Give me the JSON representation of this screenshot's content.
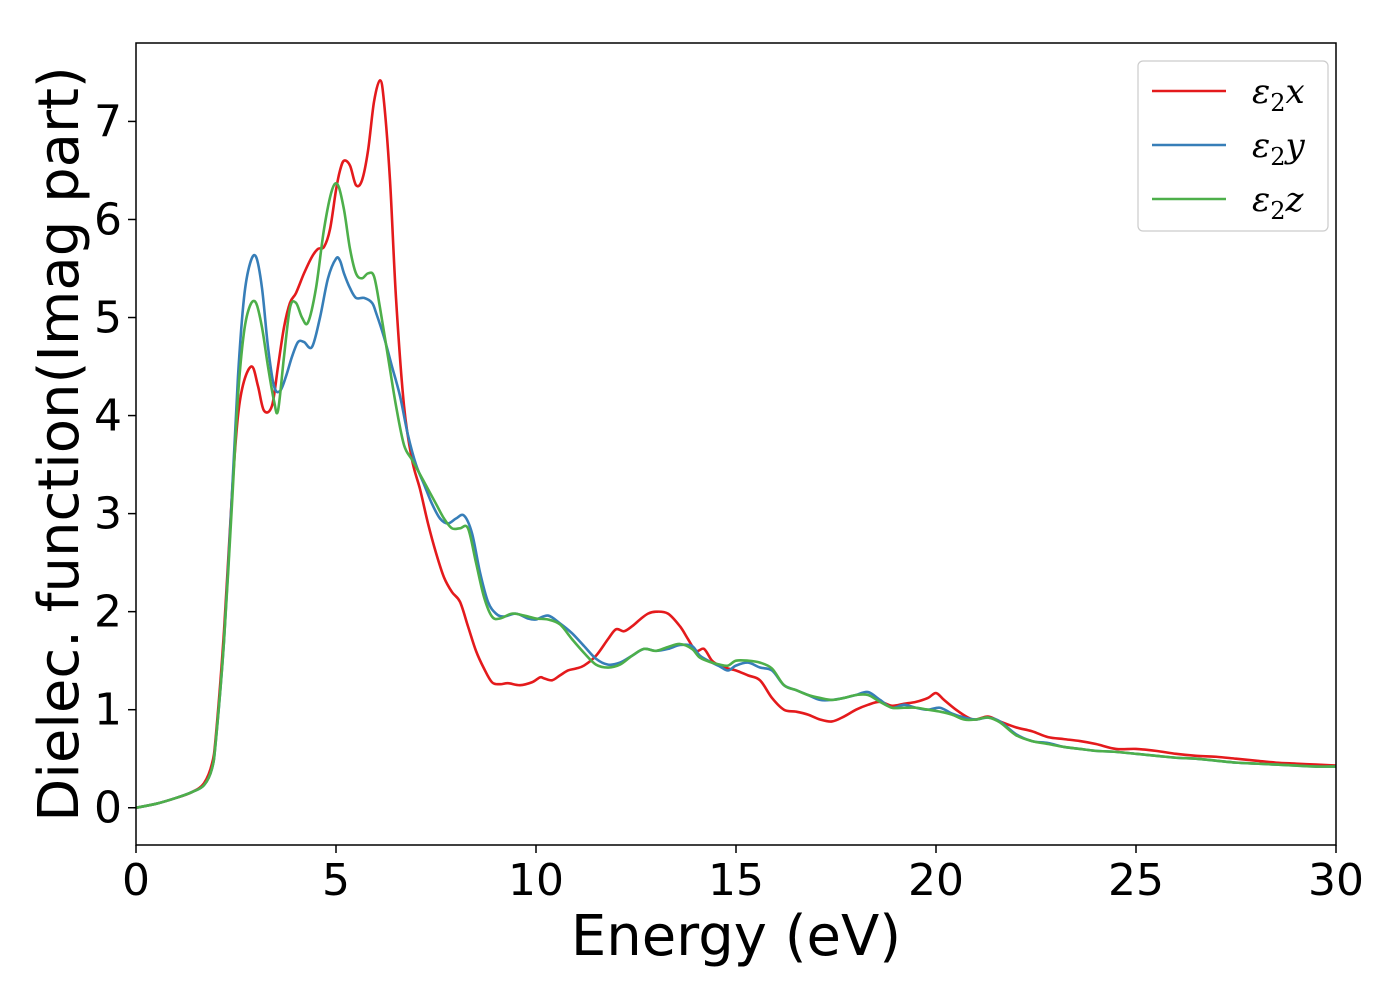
{
  "chart_data": {
    "type": "line",
    "xlabel": "Energy (eV)",
    "ylabel": "Dielec. function(Imag part)",
    "xlim": [
      0,
      30
    ],
    "ylim": [
      -0.38,
      7.8
    ],
    "xticks": [
      0,
      5,
      10,
      15,
      20,
      25,
      30
    ],
    "yticks": [
      0,
      1,
      2,
      3,
      4,
      5,
      6,
      7
    ],
    "grid": false,
    "legend_position": "top-right",
    "series": [
      {
        "name": "ε2x",
        "legend_base": "ε",
        "legend_sub": "2",
        "legend_tail": "x",
        "color": "#e41a1c",
        "x": [
          0,
          0.5,
          1.0,
          1.4,
          1.7,
          1.9,
          2.0,
          2.2,
          2.4,
          2.55,
          2.7,
          2.9,
          3.05,
          3.2,
          3.4,
          3.55,
          3.7,
          3.85,
          4.0,
          4.2,
          4.4,
          4.55,
          4.7,
          4.85,
          5.0,
          5.1,
          5.2,
          5.35,
          5.5,
          5.65,
          5.8,
          5.95,
          6.1,
          6.2,
          6.35,
          6.5,
          6.7,
          6.9,
          7.1,
          7.3,
          7.5,
          7.7,
          7.9,
          8.1,
          8.3,
          8.5,
          8.7,
          8.9,
          9.1,
          9.3,
          9.6,
          9.9,
          10.1,
          10.2,
          10.4,
          10.6,
          10.8,
          11.0,
          11.2,
          11.5,
          11.8,
          12.0,
          12.2,
          12.4,
          12.6,
          12.8,
          13.0,
          13.3,
          13.6,
          13.8,
          14.0,
          14.2,
          14.4,
          14.6,
          14.8,
          15.0,
          15.3,
          15.6,
          15.9,
          16.2,
          16.5,
          16.8,
          17.1,
          17.4,
          17.7,
          18.0,
          18.3,
          18.6,
          18.9,
          19.2,
          19.5,
          19.8,
          20.0,
          20.2,
          20.5,
          20.8,
          21.0,
          21.3,
          21.6,
          22.0,
          22.4,
          22.8,
          23.2,
          23.6,
          24.0,
          24.5,
          25.0,
          25.5,
          26.0,
          26.5,
          27.0,
          27.5,
          28.0,
          28.5,
          29.0,
          29.5,
          30.0
        ],
        "y": [
          0,
          0.04,
          0.1,
          0.16,
          0.25,
          0.45,
          0.75,
          1.8,
          3.2,
          4.0,
          4.35,
          4.5,
          4.3,
          4.05,
          4.1,
          4.5,
          4.9,
          5.15,
          5.25,
          5.45,
          5.62,
          5.7,
          5.72,
          5.9,
          6.3,
          6.5,
          6.6,
          6.55,
          6.35,
          6.4,
          6.7,
          7.2,
          7.42,
          7.2,
          6.4,
          5.2,
          4.1,
          3.55,
          3.25,
          2.9,
          2.6,
          2.35,
          2.2,
          2.1,
          1.85,
          1.6,
          1.42,
          1.28,
          1.26,
          1.27,
          1.25,
          1.28,
          1.33,
          1.32,
          1.3,
          1.35,
          1.4,
          1.42,
          1.45,
          1.55,
          1.72,
          1.82,
          1.8,
          1.85,
          1.92,
          1.98,
          2.0,
          1.98,
          1.85,
          1.72,
          1.6,
          1.62,
          1.5,
          1.45,
          1.42,
          1.4,
          1.35,
          1.3,
          1.12,
          1.0,
          0.98,
          0.95,
          0.9,
          0.88,
          0.93,
          1.0,
          1.05,
          1.08,
          1.04,
          1.06,
          1.08,
          1.12,
          1.17,
          1.1,
          1.0,
          0.92,
          0.9,
          0.93,
          0.88,
          0.82,
          0.78,
          0.72,
          0.7,
          0.68,
          0.65,
          0.6,
          0.6,
          0.58,
          0.55,
          0.53,
          0.52,
          0.5,
          0.48,
          0.46,
          0.45,
          0.44,
          0.43
        ]
      },
      {
        "name": "ε2y",
        "legend_base": "ε",
        "legend_sub": "2",
        "legend_tail": "y",
        "color": "#377eb8",
        "x": [
          0,
          0.5,
          1.0,
          1.4,
          1.7,
          1.9,
          2.0,
          2.2,
          2.4,
          2.55,
          2.7,
          2.85,
          3.0,
          3.15,
          3.3,
          3.45,
          3.6,
          3.75,
          3.9,
          4.05,
          4.2,
          4.4,
          4.6,
          4.8,
          5.0,
          5.1,
          5.2,
          5.35,
          5.5,
          5.7,
          5.9,
          6.0,
          6.2,
          6.4,
          6.6,
          6.8,
          7.0,
          7.2,
          7.4,
          7.6,
          7.8,
          8.0,
          8.2,
          8.4,
          8.6,
          8.8,
          9.0,
          9.2,
          9.5,
          9.8,
          10.0,
          10.3,
          10.6,
          10.9,
          11.2,
          11.5,
          11.8,
          12.1,
          12.4,
          12.7,
          13.0,
          13.3,
          13.6,
          13.9,
          14.1,
          14.4,
          14.6,
          14.8,
          15.0,
          15.3,
          15.6,
          15.9,
          16.2,
          16.5,
          16.8,
          17.1,
          17.4,
          17.7,
          18.0,
          18.3,
          18.6,
          18.9,
          19.2,
          19.5,
          19.8,
          20.1,
          20.4,
          20.7,
          21.0,
          21.3,
          21.6,
          22.0,
          22.4,
          22.8,
          23.2,
          23.6,
          24.0,
          24.5,
          25.0,
          25.5,
          26.0,
          26.5,
          27.0,
          27.5,
          28.0,
          28.5,
          29.0,
          29.5,
          30.0
        ],
        "y": [
          0,
          0.04,
          0.1,
          0.16,
          0.23,
          0.4,
          0.7,
          1.7,
          3.2,
          4.4,
          5.2,
          5.55,
          5.62,
          5.3,
          4.7,
          4.3,
          4.25,
          4.4,
          4.6,
          4.75,
          4.75,
          4.7,
          5.0,
          5.4,
          5.6,
          5.58,
          5.45,
          5.3,
          5.2,
          5.2,
          5.15,
          5.05,
          4.8,
          4.5,
          4.2,
          3.8,
          3.5,
          3.3,
          3.1,
          2.95,
          2.9,
          2.95,
          2.98,
          2.8,
          2.4,
          2.1,
          1.98,
          1.95,
          1.98,
          1.93,
          1.92,
          1.96,
          1.88,
          1.78,
          1.65,
          1.52,
          1.46,
          1.48,
          1.55,
          1.62,
          1.6,
          1.62,
          1.66,
          1.65,
          1.55,
          1.48,
          1.44,
          1.4,
          1.45,
          1.48,
          1.43,
          1.4,
          1.25,
          1.2,
          1.15,
          1.1,
          1.1,
          1.12,
          1.15,
          1.18,
          1.1,
          1.02,
          1.05,
          1.02,
          1.0,
          1.02,
          0.96,
          0.92,
          0.9,
          0.92,
          0.88,
          0.75,
          0.68,
          0.66,
          0.62,
          0.6,
          0.58,
          0.57,
          0.55,
          0.53,
          0.51,
          0.5,
          0.48,
          0.46,
          0.45,
          0.44,
          0.43,
          0.42,
          0.42
        ]
      },
      {
        "name": "ε2z",
        "legend_base": "ε",
        "legend_sub": "2",
        "legend_tail": "z",
        "color": "#4daf4a",
        "x": [
          0,
          0.5,
          1.0,
          1.4,
          1.7,
          1.9,
          2.0,
          2.2,
          2.4,
          2.55,
          2.7,
          2.85,
          3.0,
          3.15,
          3.3,
          3.45,
          3.55,
          3.7,
          3.85,
          4.0,
          4.15,
          4.3,
          4.5,
          4.7,
          4.9,
          5.05,
          5.2,
          5.35,
          5.5,
          5.65,
          5.8,
          5.95,
          6.1,
          6.3,
          6.5,
          6.7,
          6.9,
          7.1,
          7.3,
          7.5,
          7.7,
          7.9,
          8.1,
          8.3,
          8.5,
          8.7,
          8.9,
          9.1,
          9.4,
          9.7,
          10.0,
          10.3,
          10.6,
          10.9,
          11.2,
          11.5,
          11.8,
          12.1,
          12.4,
          12.7,
          13.0,
          13.3,
          13.6,
          13.9,
          14.1,
          14.4,
          14.6,
          14.8,
          15.0,
          15.3,
          15.6,
          15.9,
          16.2,
          16.5,
          16.8,
          17.1,
          17.4,
          17.7,
          18.0,
          18.3,
          18.6,
          18.9,
          19.2,
          19.5,
          19.8,
          20.1,
          20.4,
          20.7,
          21.0,
          21.3,
          21.6,
          22.0,
          22.4,
          22.8,
          23.2,
          23.6,
          24.0,
          24.5,
          25.0,
          25.5,
          26.0,
          26.5,
          27.0,
          27.5,
          28.0,
          28.5,
          29.0,
          29.5,
          30.0
        ],
        "y": [
          0,
          0.04,
          0.1,
          0.16,
          0.23,
          0.4,
          0.7,
          1.7,
          3.1,
          4.2,
          4.85,
          5.12,
          5.15,
          4.9,
          4.5,
          4.15,
          4.05,
          4.6,
          5.1,
          5.15,
          5.0,
          4.95,
          5.3,
          5.9,
          6.3,
          6.35,
          6.1,
          5.7,
          5.45,
          5.4,
          5.45,
          5.42,
          5.1,
          4.6,
          4.1,
          3.7,
          3.55,
          3.4,
          3.25,
          3.1,
          2.95,
          2.85,
          2.85,
          2.85,
          2.5,
          2.15,
          1.95,
          1.93,
          1.98,
          1.96,
          1.93,
          1.92,
          1.87,
          1.72,
          1.58,
          1.46,
          1.43,
          1.46,
          1.55,
          1.62,
          1.6,
          1.64,
          1.67,
          1.62,
          1.53,
          1.48,
          1.46,
          1.45,
          1.5,
          1.5,
          1.48,
          1.42,
          1.25,
          1.2,
          1.15,
          1.12,
          1.1,
          1.12,
          1.15,
          1.15,
          1.08,
          1.02,
          1.02,
          1.02,
          1.0,
          0.98,
          0.95,
          0.9,
          0.9,
          0.92,
          0.87,
          0.74,
          0.68,
          0.65,
          0.62,
          0.6,
          0.58,
          0.57,
          0.55,
          0.53,
          0.51,
          0.5,
          0.48,
          0.46,
          0.45,
          0.44,
          0.43,
          0.42,
          0.42
        ]
      }
    ]
  }
}
